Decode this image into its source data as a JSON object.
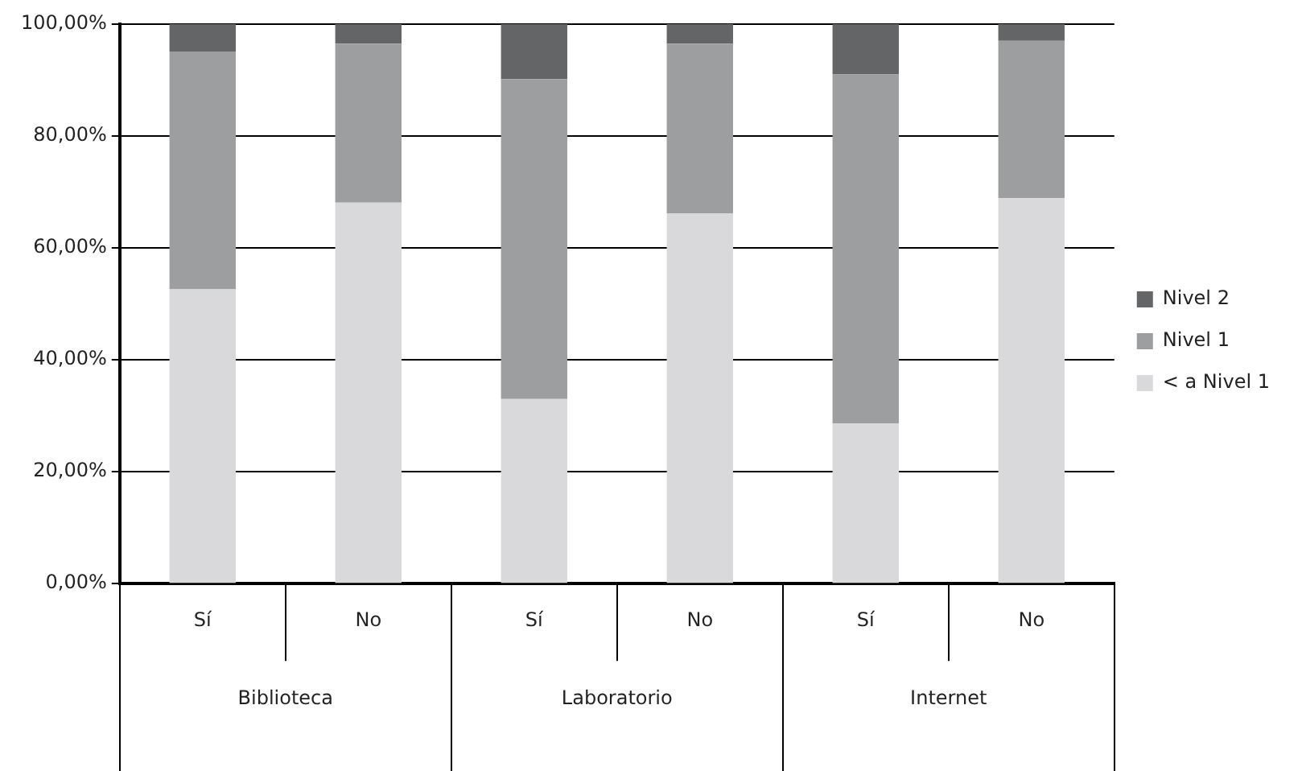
{
  "chart_data": {
    "type": "bar",
    "stacked": true,
    "categories": [
      "Sí",
      "No",
      "Sí",
      "No",
      "Sí",
      "No"
    ],
    "series": [
      {
        "name": "< a Nivel 1",
        "color": "#d9d9db",
        "values": [
          52.6,
          68.1,
          33.0,
          66.2,
          28.6,
          68.9
        ]
      },
      {
        "name": "Nivel 1",
        "color": "#9d9ea0",
        "values": [
          42.5,
          28.4,
          57.2,
          30.3,
          62.4,
          28.1
        ]
      },
      {
        "name": "Nivel 2",
        "color": "#646567",
        "values": [
          4.9,
          3.5,
          9.8,
          3.5,
          9.0,
          3.0
        ]
      }
    ],
    "ylim": [
      0,
      100
    ],
    "yticks": [
      {
        "value": 0,
        "label": "0,00%"
      },
      {
        "value": 20,
        "label": "20,00%"
      },
      {
        "value": 40,
        "label": "40,00%"
      },
      {
        "value": 60,
        "label": "60,00%"
      },
      {
        "value": 80,
        "label": "80,00%"
      },
      {
        "value": 100,
        "label": "100,00%"
      }
    ],
    "annotations": [
      "Biblioteca",
      "Laboratorio",
      "Internet"
    ],
    "grid": "y",
    "legend": "right"
  }
}
